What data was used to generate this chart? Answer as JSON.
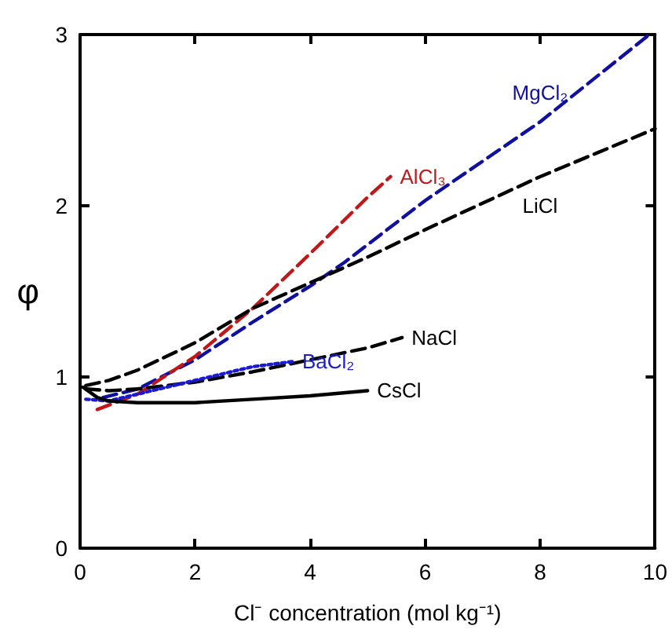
{
  "chart_data": {
    "type": "line",
    "xlabel": "Cl⁻ concentration (mol kg⁻¹)",
    "ylabel": "φ",
    "xlim": [
      0,
      10
    ],
    "xticks": [
      0,
      2,
      4,
      6,
      8,
      10
    ],
    "ylim": [
      0,
      3
    ],
    "yticks": [
      0,
      1,
      2,
      3
    ],
    "grid": false,
    "legend": false,
    "marker": "none",
    "series": [
      {
        "name": "MgCl₂",
        "color": "#1010a0",
        "line_style": "dashed",
        "x": [
          0.4,
          1,
          2,
          3,
          4,
          4.6,
          6,
          8,
          9.9
        ],
        "values": [
          0.88,
          0.93,
          1.1,
          1.32,
          1.53,
          1.67,
          2.03,
          2.49,
          3.0
        ]
      },
      {
        "name": "AlCl₃",
        "color": "#c01818",
        "line_style": "dashed",
        "x": [
          0.3,
          1,
          2,
          3,
          4,
          5,
          5.4
        ],
        "values": [
          0.81,
          0.9,
          1.12,
          1.4,
          1.72,
          2.05,
          2.17
        ]
      },
      {
        "name": "LiCl",
        "color": "#000000",
        "line_style": "dashed",
        "x": [
          0.1,
          0.5,
          1,
          2,
          3,
          4,
          5,
          6,
          8,
          10
        ],
        "values": [
          0.95,
          0.98,
          1.04,
          1.2,
          1.4,
          1.55,
          1.7,
          1.86,
          2.17,
          2.45
        ]
      },
      {
        "name": "NaCl",
        "color": "#000000",
        "line_style": "dashed",
        "x": [
          0.1,
          0.5,
          1,
          2,
          3,
          4,
          5,
          5.6
        ],
        "values": [
          0.93,
          0.92,
          0.93,
          0.97,
          1.03,
          1.1,
          1.17,
          1.23
        ]
      },
      {
        "name": "BaCl₂",
        "color": "#1a1ad0",
        "line_style": "dotted",
        "x": [
          0.1,
          0.5,
          1,
          2,
          3,
          3.7
        ],
        "values": [
          0.87,
          0.86,
          0.9,
          0.98,
          1.06,
          1.09
        ]
      },
      {
        "name": "CsCl",
        "color": "#000000",
        "line_style": "solid",
        "x": [
          0.05,
          0.3,
          0.5,
          1,
          2,
          3,
          4,
          5
        ],
        "values": [
          0.94,
          0.88,
          0.86,
          0.85,
          0.85,
          0.87,
          0.89,
          0.92
        ]
      }
    ]
  }
}
